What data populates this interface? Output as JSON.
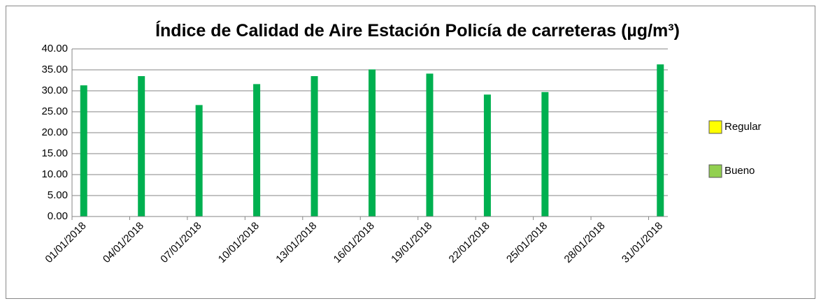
{
  "chart_data": {
    "type": "bar",
    "title": "Índice de Calidad de Aire Estación Policía de carreteras (µg/m³)",
    "categories": [
      "01/01/2018",
      "04/01/2018",
      "07/01/2018",
      "10/01/2018",
      "13/01/2018",
      "16/01/2018",
      "19/01/2018",
      "22/01/2018",
      "25/01/2018",
      "28/01/2018",
      "31/01/2018"
    ],
    "values": [
      31.3,
      33.5,
      26.6,
      31.6,
      33.5,
      35.1,
      34.1,
      29.1,
      29.7,
      null,
      36.3
    ],
    "color": "#00b050",
    "ylim": [
      0,
      40
    ],
    "yticks": [
      {
        "value": 0,
        "label": "0.00"
      },
      {
        "value": 5,
        "label": "5.00"
      },
      {
        "value": 10,
        "label": "10.00"
      },
      {
        "value": 15,
        "label": "15.00"
      },
      {
        "value": 20,
        "label": "20.00"
      },
      {
        "value": 25,
        "label": "25.00"
      },
      {
        "value": 30,
        "label": "30.00"
      },
      {
        "value": 35,
        "label": "35.00"
      },
      {
        "value": 40,
        "label": "40.00"
      }
    ],
    "grid": true,
    "legend": [
      {
        "name": "Regular",
        "color": "#ffff00"
      },
      {
        "name": "Bueno",
        "color": "#92d050"
      }
    ]
  }
}
